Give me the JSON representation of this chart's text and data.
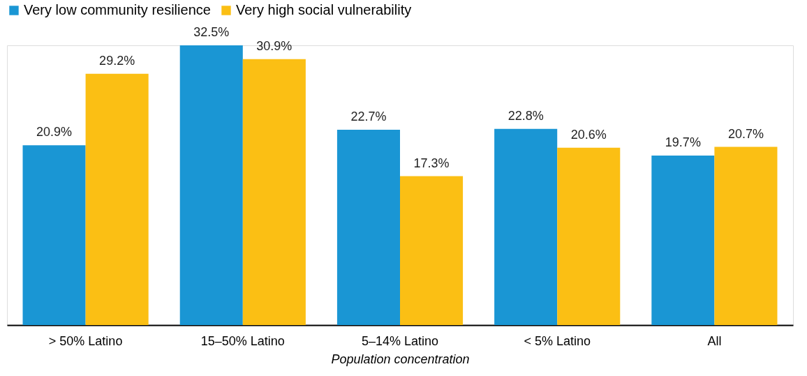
{
  "chart_data": {
    "type": "bar",
    "xlabel": "Population concentration",
    "categories": [
      "> 50% Latino",
      "15–50% Latino",
      "5–14% Latino",
      "< 5% Latino",
      "All"
    ],
    "series": [
      {
        "name": "Very low community resilience",
        "color": "#1a96d4",
        "values": [
          20.9,
          32.5,
          22.7,
          22.8,
          19.7
        ],
        "value_labels": [
          "20.9%",
          "32.5%",
          "22.7%",
          "22.8%",
          "19.7%"
        ]
      },
      {
        "name": "Very high social vulnerability",
        "color": "#fbbf14",
        "values": [
          29.2,
          30.9,
          17.3,
          20.6,
          20.7
        ],
        "value_labels": [
          "29.2%",
          "30.9%",
          "17.3%",
          "20.6%",
          "20.7%"
        ]
      }
    ],
    "legend": "top left",
    "grid": false
  }
}
